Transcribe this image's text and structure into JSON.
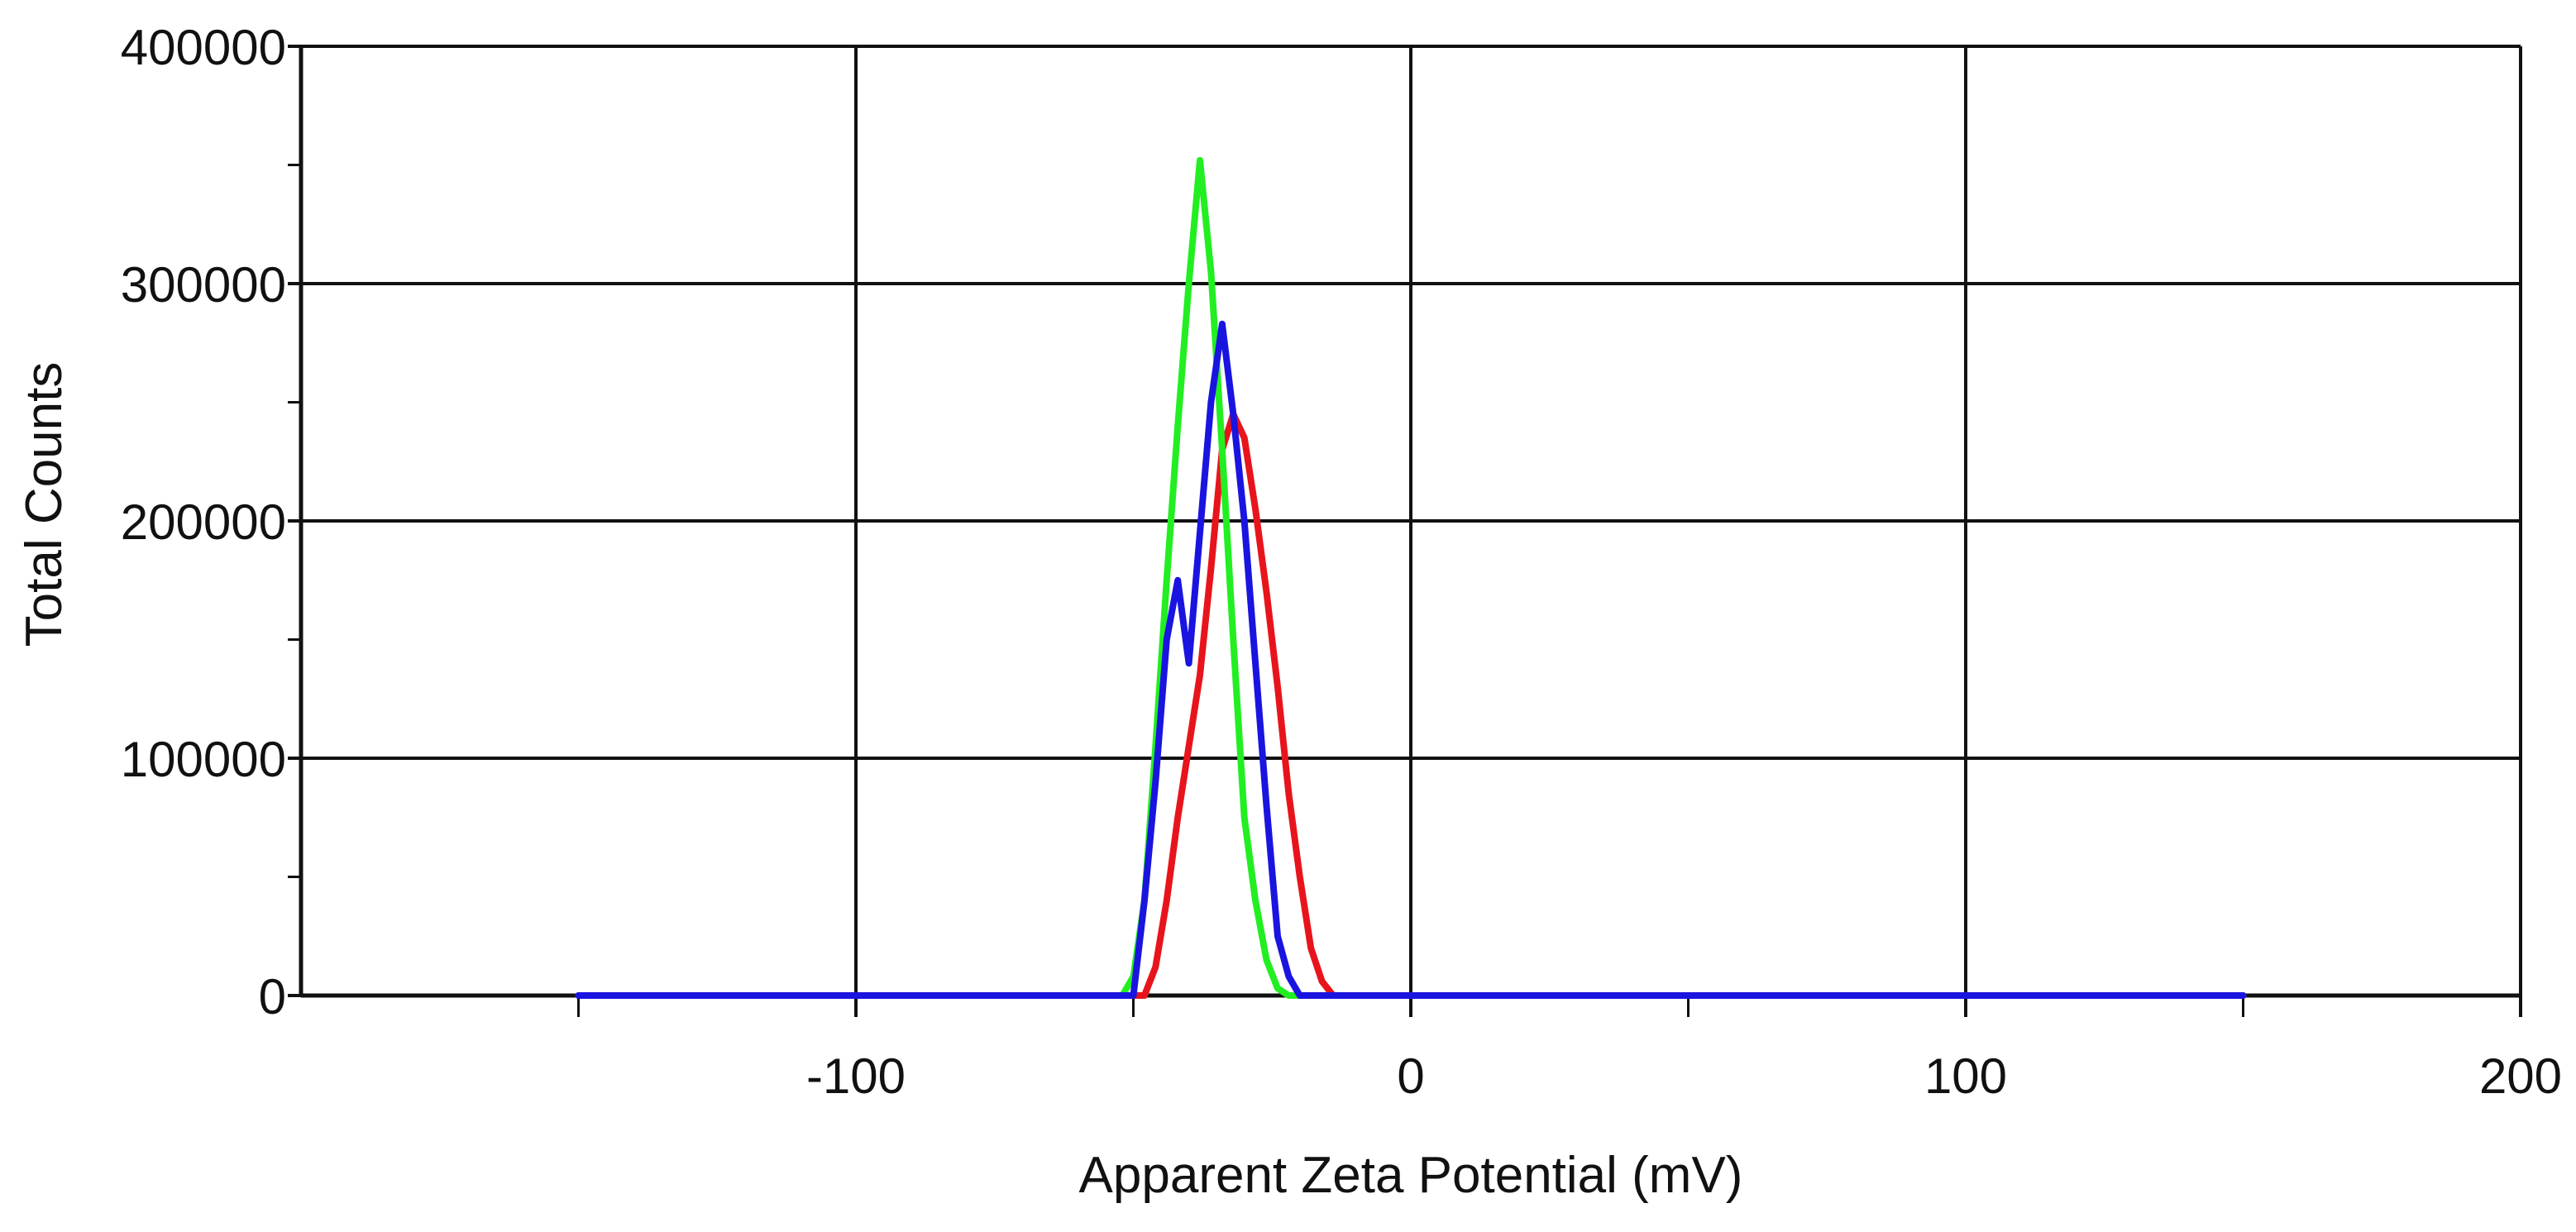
{
  "chart_data": {
    "type": "line",
    "title": "",
    "xlabel": "Apparent Zeta Potential (mV)",
    "ylabel": "Total Counts",
    "xlim": [
      -200,
      200
    ],
    "ylim": [
      0,
      400000
    ],
    "x_ticks": [
      -100,
      0,
      100,
      200
    ],
    "x_tick_labels": [
      "-100",
      "0",
      "100",
      "200"
    ],
    "x_minor_ticks": [
      -150,
      -50,
      50,
      150
    ],
    "y_ticks": [
      0,
      100000,
      200000,
      300000,
      400000
    ],
    "y_tick_labels": [
      "0",
      "100000",
      "200000",
      "300000",
      "400000"
    ],
    "y_minor_ticks": [
      50000,
      150000,
      250000,
      350000
    ],
    "grid": true,
    "series": [
      {
        "name": "red",
        "color": "#e8141c",
        "x": [
          -150,
          -48,
          -46,
          -44,
          -42,
          -40,
          -38,
          -36,
          -34,
          -32,
          -30,
          -28,
          -26,
          -24,
          -22,
          -20,
          -18,
          -16,
          -14,
          -12,
          150
        ],
        "y": [
          0,
          0,
          12000,
          40000,
          75000,
          105000,
          135000,
          180000,
          230000,
          245000,
          235000,
          205000,
          170000,
          130000,
          85000,
          50000,
          20000,
          6000,
          0,
          0,
          0
        ]
      },
      {
        "name": "green",
        "color": "#22ee22",
        "x": [
          -150,
          -52,
          -50,
          -48,
          -46,
          -44,
          -42,
          -40,
          -38,
          -36,
          -34,
          -32,
          -30,
          -28,
          -26,
          -24,
          -22,
          -20,
          -18,
          150
        ],
        "y": [
          0,
          0,
          8000,
          40000,
          105000,
          175000,
          240000,
          300000,
          352000,
          305000,
          230000,
          150000,
          75000,
          40000,
          15000,
          3000,
          0,
          0,
          0,
          0
        ]
      },
      {
        "name": "blue",
        "color": "#1a14e0",
        "x": [
          -150,
          -50,
          -48,
          -46,
          -44,
          -42,
          -40,
          -38,
          -36,
          -34,
          -32,
          -30,
          -28,
          -26,
          -24,
          -22,
          -20,
          -18,
          -16,
          -14,
          150
        ],
        "y": [
          0,
          0,
          40000,
          90000,
          150000,
          175000,
          140000,
          195000,
          250000,
          283000,
          245000,
          200000,
          140000,
          80000,
          25000,
          8000,
          0,
          0,
          0,
          0,
          0
        ]
      }
    ]
  }
}
